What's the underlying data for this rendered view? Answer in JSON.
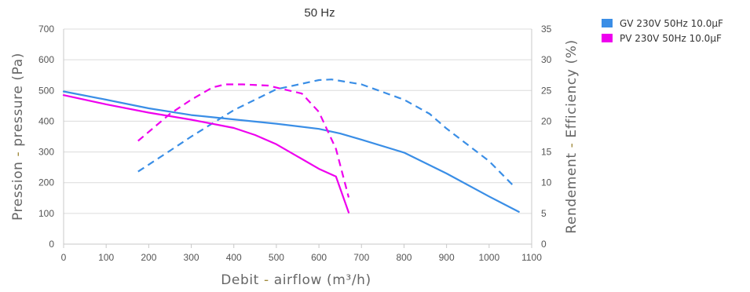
{
  "chart_data": {
    "type": "line",
    "title": "50 Hz",
    "xlabel_parts": [
      "Debit",
      "airflow (m³/h)"
    ],
    "ylabel_left_parts": [
      "Pression",
      "pressure (Pa)"
    ],
    "ylabel_right_parts": [
      "Rendement",
      "Efficiency (%)"
    ],
    "xlim": [
      0,
      1100
    ],
    "ylim_left": [
      0,
      700
    ],
    "ylim_right": [
      0,
      35
    ],
    "x_ticks": [
      "0",
      "100",
      "200",
      "300",
      "400",
      "500",
      "600",
      "700",
      "800",
      "900",
      "1000",
      "1100"
    ],
    "y_left_ticks": [
      "0",
      "100",
      "200",
      "300",
      "400",
      "500",
      "600",
      "700"
    ],
    "y_right_ticks": [
      "0",
      "5",
      "10",
      "15",
      "20",
      "25",
      "30",
      "35"
    ],
    "grid": true,
    "legend_position": "top-right",
    "series": [
      {
        "name": "GV 230V 50Hz 10.0μF",
        "color": "#3a8ee6",
        "pressure": {
          "x": [
            0,
            100,
            200,
            300,
            400,
            500,
            600,
            650,
            700,
            800,
            900,
            1000,
            1070
          ],
          "y": [
            497,
            470,
            442,
            420,
            406,
            392,
            375,
            360,
            340,
            298,
            230,
            155,
            105
          ]
        },
        "efficiency": {
          "x": [
            175,
            250,
            300,
            400,
            500,
            600,
            630,
            700,
            800,
            860,
            900,
            1000,
            1060
          ],
          "y": [
            11.8,
            15.2,
            17.5,
            21.8,
            25.2,
            26.7,
            26.8,
            26.0,
            23.5,
            21.2,
            18.8,
            13.5,
            9.3
          ]
        }
      },
      {
        "name": "PV 230V 50Hz 10.0μF",
        "color": "#ee00ee",
        "pressure": {
          "x": [
            0,
            100,
            200,
            300,
            400,
            450,
            500,
            550,
            600,
            640,
            670
          ],
          "y": [
            485,
            455,
            428,
            405,
            378,
            355,
            325,
            285,
            245,
            220,
            103
          ]
        },
        "efficiency": {
          "x": [
            175,
            250,
            300,
            350,
            380,
            420,
            480,
            560,
            600,
            640,
            670
          ],
          "y": [
            16.8,
            21.2,
            23.5,
            25.5,
            26.0,
            26.0,
            25.8,
            24.5,
            21.5,
            15.5,
            7.6
          ]
        }
      }
    ]
  }
}
